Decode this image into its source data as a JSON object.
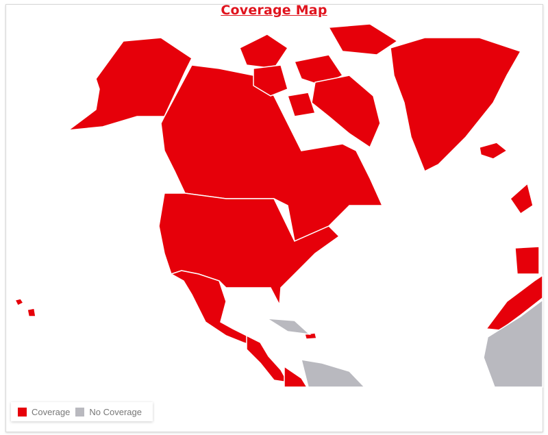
{
  "title": "Coverage Map",
  "colors": {
    "coverage": "#e6000a",
    "no_coverage": "#b9b9bf",
    "border": "#ffffff"
  },
  "legend": [
    {
      "label": "Coverage",
      "color": "#e6000a"
    },
    {
      "label": "No Coverage",
      "color": "#b9b9bf"
    }
  ]
}
